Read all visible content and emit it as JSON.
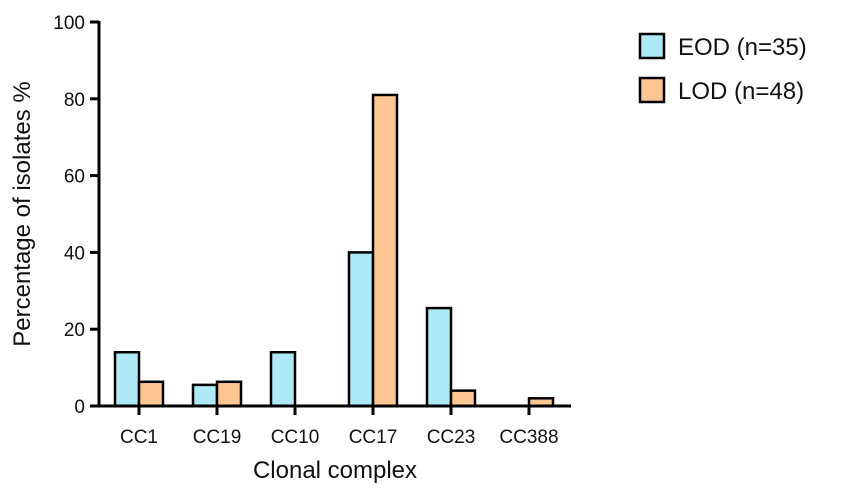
{
  "chart_data": {
    "type": "bar",
    "xlabel": "Clonal complex",
    "ylabel": "Percentage of isolates %",
    "ylim": [
      0,
      100
    ],
    "yticks": [
      0,
      20,
      40,
      60,
      80,
      100
    ],
    "categories": [
      "CC1",
      "CC19",
      "CC10",
      "CC17",
      "CC23",
      "CC388"
    ],
    "series": [
      {
        "name": "EOD (n=35)",
        "color": "#aee9f7",
        "values": [
          14,
          5.5,
          14,
          40,
          25.5,
          0
        ]
      },
      {
        "name": "LOD (n=48)",
        "color": "#fbc691",
        "values": [
          6.3,
          6.3,
          0,
          81,
          4,
          2
        ]
      }
    ],
    "legend_position": "top-right",
    "grid": false
  }
}
